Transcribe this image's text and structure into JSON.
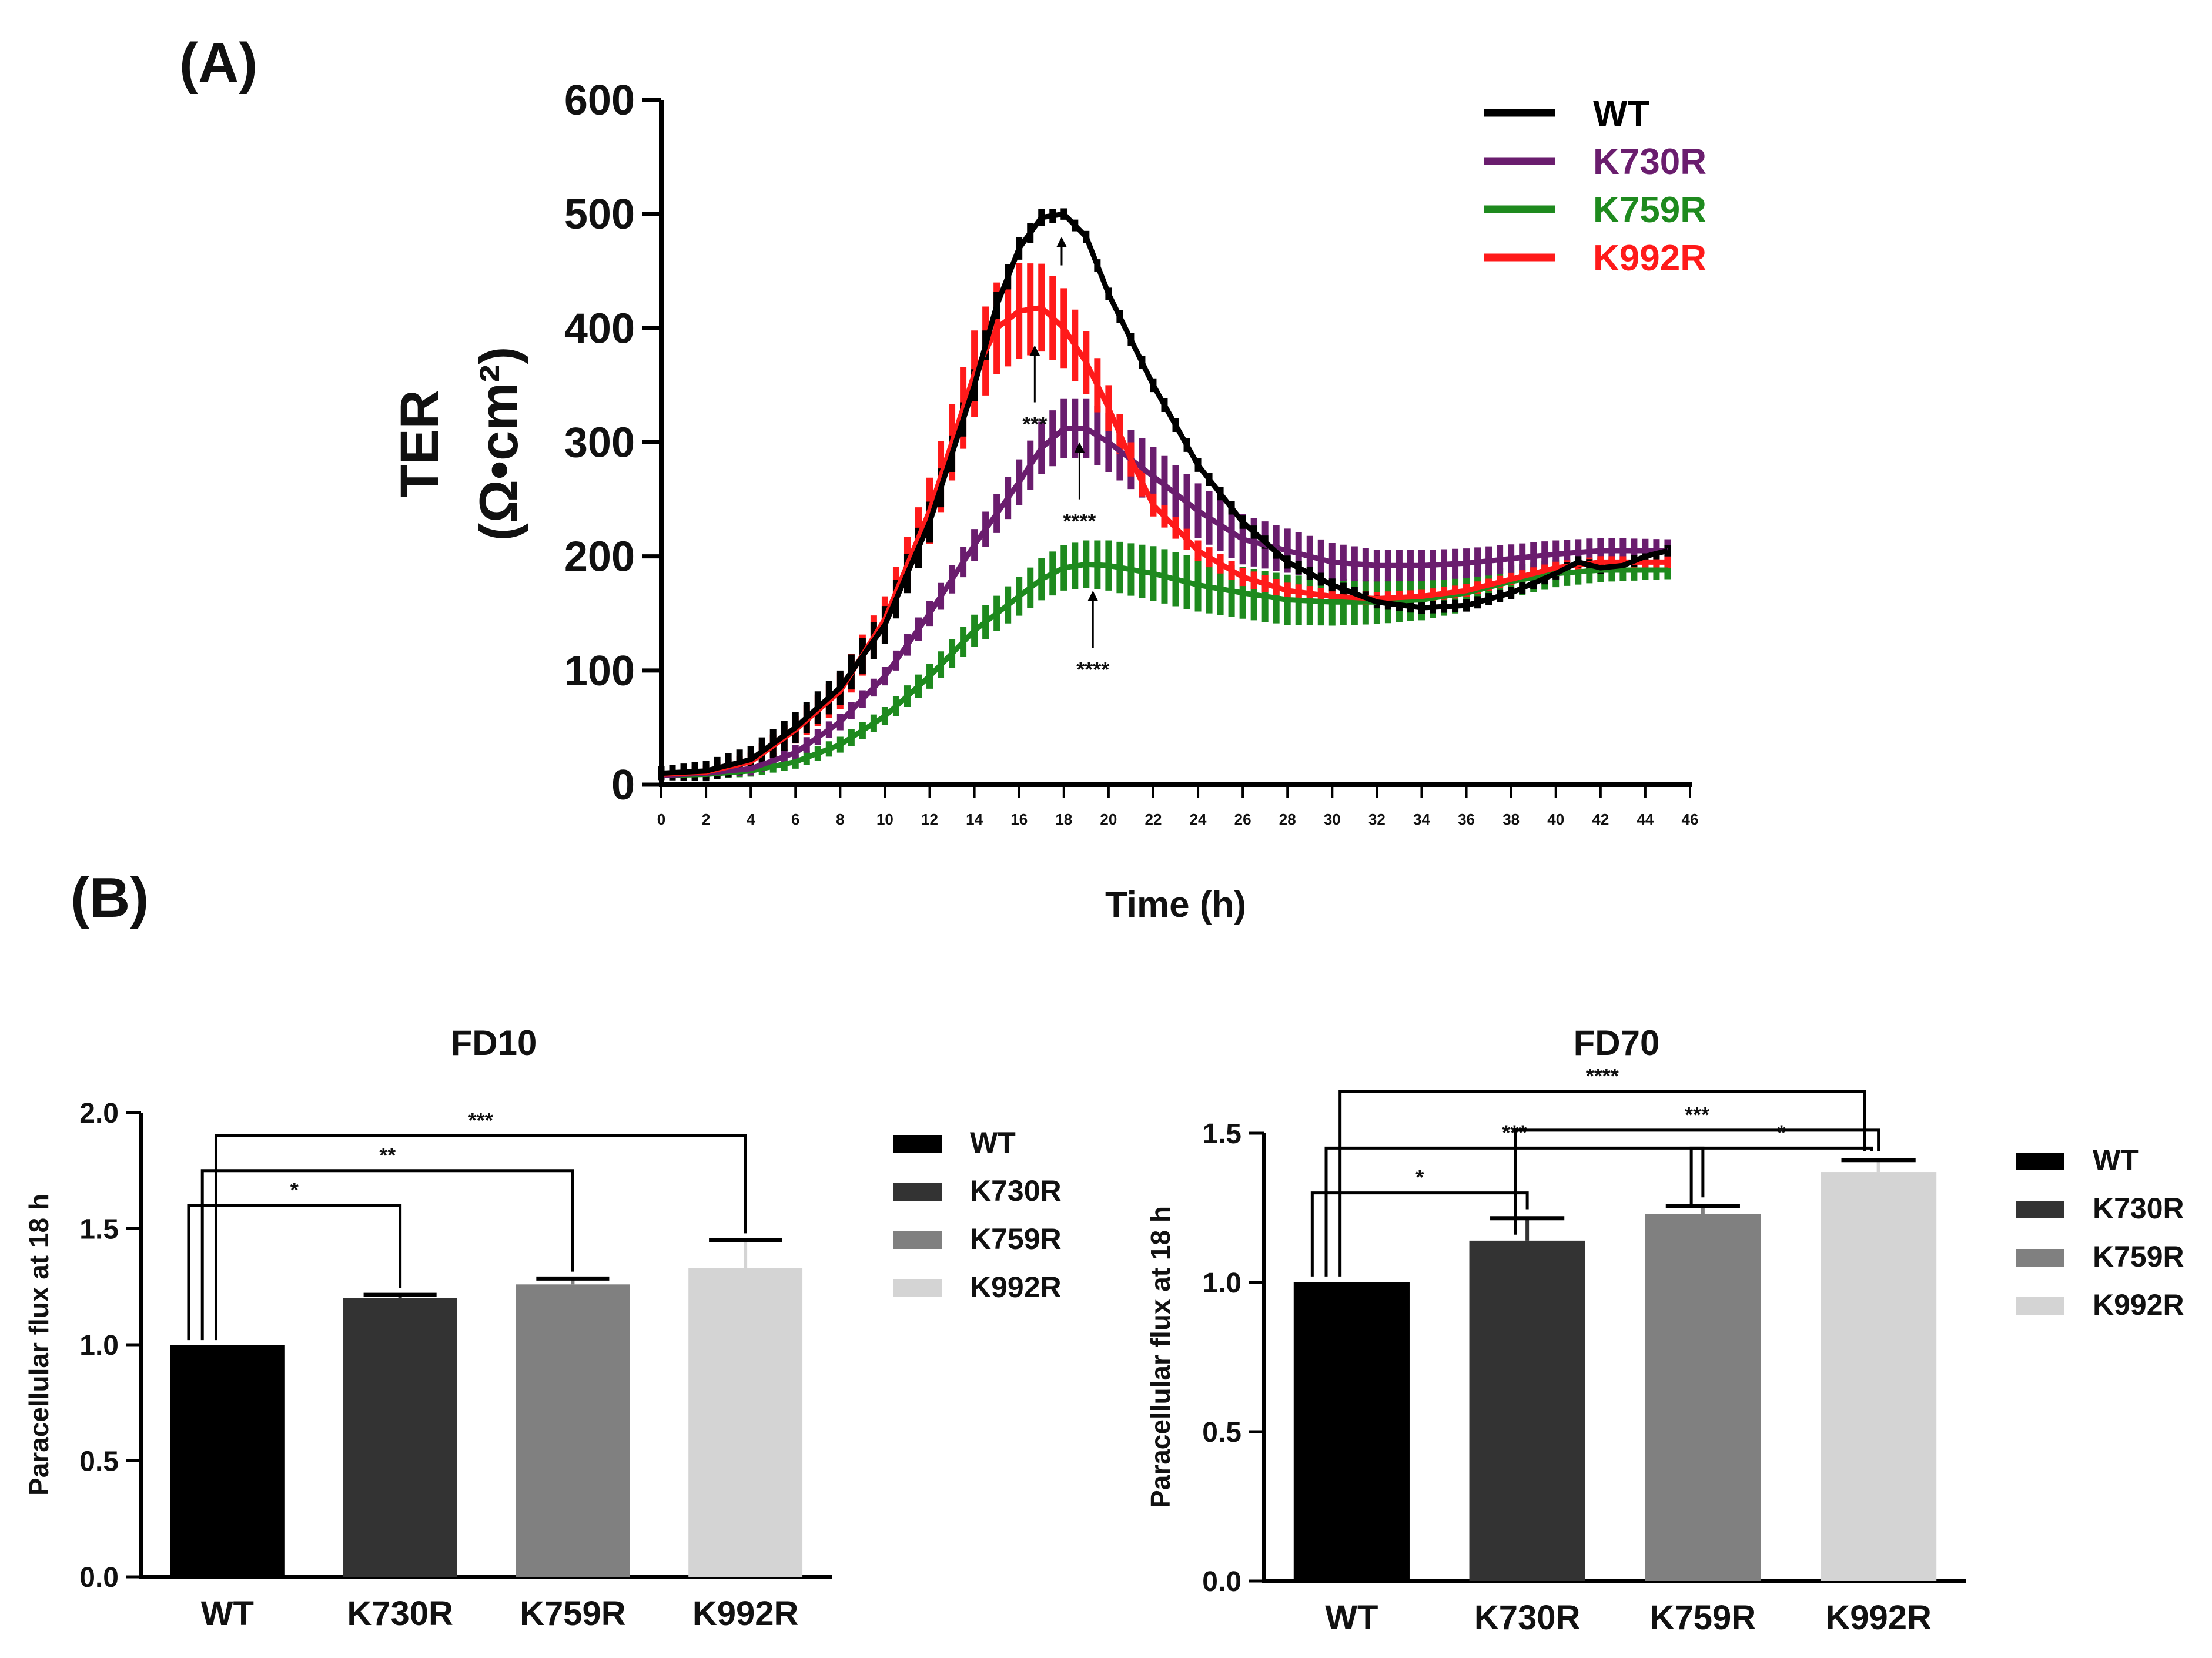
{
  "panel_a": {
    "label": "(A)",
    "legend_items": [
      {
        "name": "WT",
        "color": "#000000"
      },
      {
        "name": "K730R",
        "color": "#6a1d6e"
      },
      {
        "name": "K759R",
        "color": "#1e8a1e"
      },
      {
        "name": "K992R",
        "color": "#ff1a1a"
      }
    ],
    "annotations": [
      {
        "text": "***",
        "x": 16.7,
        "tip_y": 385,
        "tail_y": 335,
        "label_y": 325
      },
      {
        "text": "****",
        "x": 18.7,
        "tip_y": 300,
        "tail_y": 250,
        "label_y": 240
      },
      {
        "text": "****",
        "x": 19.3,
        "tip_y": 170,
        "tail_y": 120,
        "label_y": 110
      },
      {
        "text": "",
        "x": 17.9,
        "tip_y": 480,
        "tail_y": 455,
        "label_y": null
      }
    ]
  },
  "panel_b": {
    "label": "(B)"
  },
  "chart_data": [
    {
      "type": "line",
      "title": "",
      "xlabel": "Time (h)",
      "ylabel": "TER",
      "ylabel_unit": "(Ω•cm²)",
      "xlim": [
        0,
        46
      ],
      "ylim": [
        0,
        600
      ],
      "xticks": [
        0,
        2,
        4,
        6,
        8,
        10,
        12,
        14,
        16,
        18,
        20,
        22,
        24,
        26,
        28,
        30,
        32,
        34,
        36,
        38,
        40,
        42,
        44,
        46
      ],
      "yticks": [
        0,
        100,
        200,
        300,
        400,
        500,
        600
      ],
      "series": [
        {
          "name": "WT",
          "color": "#000000",
          "err_default": 6,
          "points": [
            [
              0,
              10
            ],
            [
              2,
              12
            ],
            [
              4,
              22
            ],
            [
              6,
              50
            ],
            [
              8,
              85
            ],
            [
              10,
              140
            ],
            [
              12,
              230
            ],
            [
              14,
              350
            ],
            [
              15,
              420
            ],
            [
              16,
              470
            ],
            [
              17,
              497
            ],
            [
              18,
              500
            ],
            [
              19,
              480
            ],
            [
              20,
              430
            ],
            [
              22,
              350
            ],
            [
              24,
              280
            ],
            [
              26,
              230
            ],
            [
              28,
              195
            ],
            [
              30,
              175
            ],
            [
              32,
              160
            ],
            [
              34,
              155
            ],
            [
              36,
              157
            ],
            [
              38,
              168
            ],
            [
              40,
              185
            ],
            [
              41,
              195
            ],
            [
              42,
              190
            ],
            [
              43,
              192
            ],
            [
              44,
              200
            ],
            [
              45,
              205
            ]
          ],
          "err_points": [
            [
              0,
              6
            ],
            [
              4,
              12
            ],
            [
              12,
              18
            ],
            [
              16,
              10
            ],
            [
              18,
              5
            ],
            [
              22,
              6
            ],
            [
              45,
              5
            ]
          ]
        },
        {
          "name": "K730R",
          "color": "#6a1d6e",
          "err_default": 20,
          "points": [
            [
              0,
              8
            ],
            [
              2,
              10
            ],
            [
              4,
              14
            ],
            [
              6,
              28
            ],
            [
              8,
              55
            ],
            [
              10,
              95
            ],
            [
              12,
              150
            ],
            [
              14,
              210
            ],
            [
              16,
              265
            ],
            [
              17,
              295
            ],
            [
              18,
              312
            ],
            [
              19,
              312
            ],
            [
              20,
              300
            ],
            [
              22,
              270
            ],
            [
              24,
              240
            ],
            [
              26,
              215
            ],
            [
              28,
              205
            ],
            [
              30,
              195
            ],
            [
              32,
              192
            ],
            [
              34,
              192
            ],
            [
              36,
              194
            ],
            [
              38,
              198
            ],
            [
              40,
              202
            ],
            [
              42,
              205
            ],
            [
              44,
              205
            ],
            [
              45,
              205
            ]
          ],
          "err_points": [
            [
              0,
              4
            ],
            [
              4,
              6
            ],
            [
              10,
              8
            ],
            [
              14,
              14
            ],
            [
              18,
              26
            ],
            [
              22,
              26
            ],
            [
              26,
              22
            ],
            [
              32,
              14
            ],
            [
              40,
              12
            ],
            [
              45,
              10
            ]
          ]
        },
        {
          "name": "K759R",
          "color": "#1e8a1e",
          "err_default": 20,
          "points": [
            [
              0,
              8
            ],
            [
              2,
              9
            ],
            [
              4,
              12
            ],
            [
              6,
              20
            ],
            [
              8,
              35
            ],
            [
              10,
              60
            ],
            [
              12,
              95
            ],
            [
              14,
              135
            ],
            [
              16,
              165
            ],
            [
              17,
              180
            ],
            [
              18,
              190
            ],
            [
              19,
              193
            ],
            [
              20,
              192
            ],
            [
              22,
              185
            ],
            [
              24,
              175
            ],
            [
              26,
              168
            ],
            [
              28,
              162
            ],
            [
              30,
              160
            ],
            [
              32,
              160
            ],
            [
              34,
              162
            ],
            [
              36,
              168
            ],
            [
              38,
              178
            ],
            [
              40,
              185
            ],
            [
              42,
              188
            ],
            [
              44,
              188
            ],
            [
              45,
              188
            ]
          ],
          "err_points": [
            [
              0,
              3
            ],
            [
              4,
              5
            ],
            [
              10,
              8
            ],
            [
              14,
              14
            ],
            [
              18,
              20
            ],
            [
              22,
              24
            ],
            [
              28,
              22
            ],
            [
              34,
              18
            ],
            [
              40,
              12
            ],
            [
              45,
              8
            ]
          ]
        },
        {
          "name": "K992R",
          "color": "#ff1a1a",
          "err_default": 12,
          "points": [
            [
              0,
              9
            ],
            [
              2,
              11
            ],
            [
              4,
              20
            ],
            [
              6,
              48
            ],
            [
              8,
              82
            ],
            [
              10,
              145
            ],
            [
              12,
              240
            ],
            [
              13,
              300
            ],
            [
              14,
              360
            ],
            [
              15,
              400
            ],
            [
              16,
              415
            ],
            [
              17,
              418
            ],
            [
              18,
              400
            ],
            [
              19,
              370
            ],
            [
              20,
              330
            ],
            [
              21,
              285
            ],
            [
              22,
              245
            ],
            [
              24,
              205
            ],
            [
              26,
              182
            ],
            [
              28,
              170
            ],
            [
              30,
              165
            ],
            [
              32,
              163
            ],
            [
              34,
              165
            ],
            [
              36,
              170
            ],
            [
              38,
              180
            ],
            [
              40,
              190
            ],
            [
              42,
              195
            ],
            [
              44,
              195
            ],
            [
              45,
              195
            ]
          ],
          "err_points": [
            [
              0,
              4
            ],
            [
              4,
              8
            ],
            [
              10,
              20
            ],
            [
              14,
              38
            ],
            [
              16,
              42
            ],
            [
              18,
              35
            ],
            [
              20,
              20
            ],
            [
              22,
              10
            ],
            [
              30,
              6
            ],
            [
              45,
              5
            ]
          ]
        }
      ]
    },
    {
      "type": "bar",
      "title": "FD10",
      "ylabel": "Paracellular flux at 18 h",
      "ylim": [
        0,
        2.0
      ],
      "yticks": [
        "0.0",
        "0.5",
        "1.0",
        "1.5",
        "2.0"
      ],
      "categories": [
        "WT",
        "K730R",
        "K759R",
        "K992R"
      ],
      "values": [
        1.0,
        1.2,
        1.26,
        1.33
      ],
      "errors": [
        0.0,
        0.015,
        0.025,
        0.12
      ],
      "colors": [
        "#000000",
        "#333333",
        "#808080",
        "#d4d4d4"
      ],
      "legend": [
        "WT",
        "K730R",
        "K759R",
        "K992R"
      ],
      "brackets": [
        {
          "from": 0,
          "to": 1,
          "label": "*",
          "level": 1.6
        },
        {
          "from": 0,
          "to": 2,
          "label": "**",
          "level": 1.75
        },
        {
          "from": 0,
          "to": 3,
          "label": "***",
          "level": 1.9
        }
      ]
    },
    {
      "type": "bar",
      "title": "FD70",
      "ylabel": "Paracellular flux at 18 h",
      "ylim": [
        0,
        1.5
      ],
      "yticks": [
        "0.0",
        "0.5",
        "1.0",
        "1.5"
      ],
      "categories": [
        "WT",
        "K730R",
        "K759R",
        "K992R"
      ],
      "values": [
        1.0,
        1.14,
        1.23,
        1.37
      ],
      "errors": [
        0.0,
        0.075,
        0.025,
        0.04
      ],
      "colors": [
        "#000000",
        "#333333",
        "#808080",
        "#d4d4d4"
      ],
      "legend": [
        "WT",
        "K730R",
        "K759R",
        "K992R"
      ],
      "brackets": [
        {
          "from": 0,
          "to": 1,
          "label": "*",
          "level": 1.3
        },
        {
          "from": 0,
          "to": 2,
          "label": "***",
          "level": 1.45
        },
        {
          "from": 1,
          "to": 3,
          "label": "***",
          "level": 1.51
        },
        {
          "from": 2,
          "to": 3,
          "label": "*",
          "level": 1.45
        },
        {
          "from": 0,
          "to": 3,
          "label": "****",
          "level": 1.64
        }
      ]
    }
  ]
}
